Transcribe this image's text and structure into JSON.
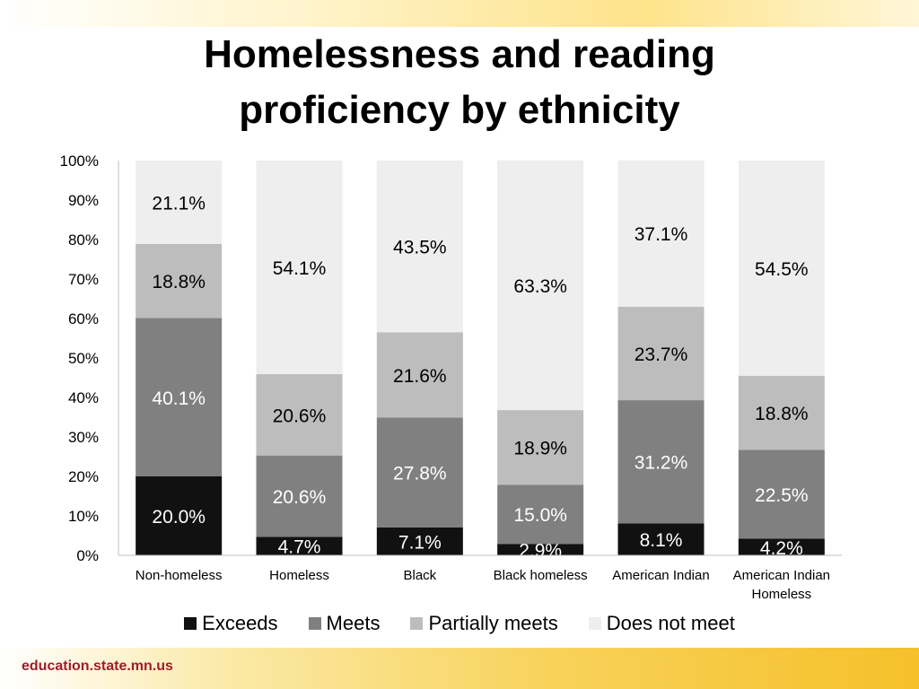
{
  "slide": {
    "footer": "education.state.mn.us"
  },
  "chart_data": {
    "type": "bar",
    "stacked": true,
    "title": "Homelessness and reading proficiency by ethnicity",
    "categories": [
      [
        "Non-homeless"
      ],
      [
        "Homeless"
      ],
      [
        "Black"
      ],
      [
        "Black homeless"
      ],
      [
        "American Indian"
      ],
      [
        "American Indian",
        "Homeless"
      ]
    ],
    "series": [
      {
        "name": "Exceeds",
        "color": "#111111",
        "label_color": "#ffffff",
        "values": [
          20.0,
          4.7,
          7.1,
          2.9,
          8.1,
          4.2
        ]
      },
      {
        "name": "Meets",
        "color": "#808080",
        "label_color": "#ffffff",
        "values": [
          40.1,
          20.6,
          27.8,
          15.0,
          31.2,
          22.5
        ]
      },
      {
        "name": "Partially meets",
        "color": "#bdbdbd",
        "label_color": "#000000",
        "values": [
          18.8,
          20.6,
          21.6,
          18.9,
          23.7,
          18.8
        ]
      },
      {
        "name": "Does not meet",
        "color": "#eeeeee",
        "label_color": "#000000",
        "values": [
          21.1,
          54.1,
          43.5,
          63.3,
          37.1,
          54.5
        ]
      }
    ],
    "ylim": [
      0,
      100
    ],
    "yticks": [
      "0%",
      "10%",
      "20%",
      "30%",
      "40%",
      "50%",
      "60%",
      "70%",
      "80%",
      "90%",
      "100%"
    ],
    "xlabel": "",
    "ylabel": "",
    "grid": false,
    "legend": "bottom"
  }
}
